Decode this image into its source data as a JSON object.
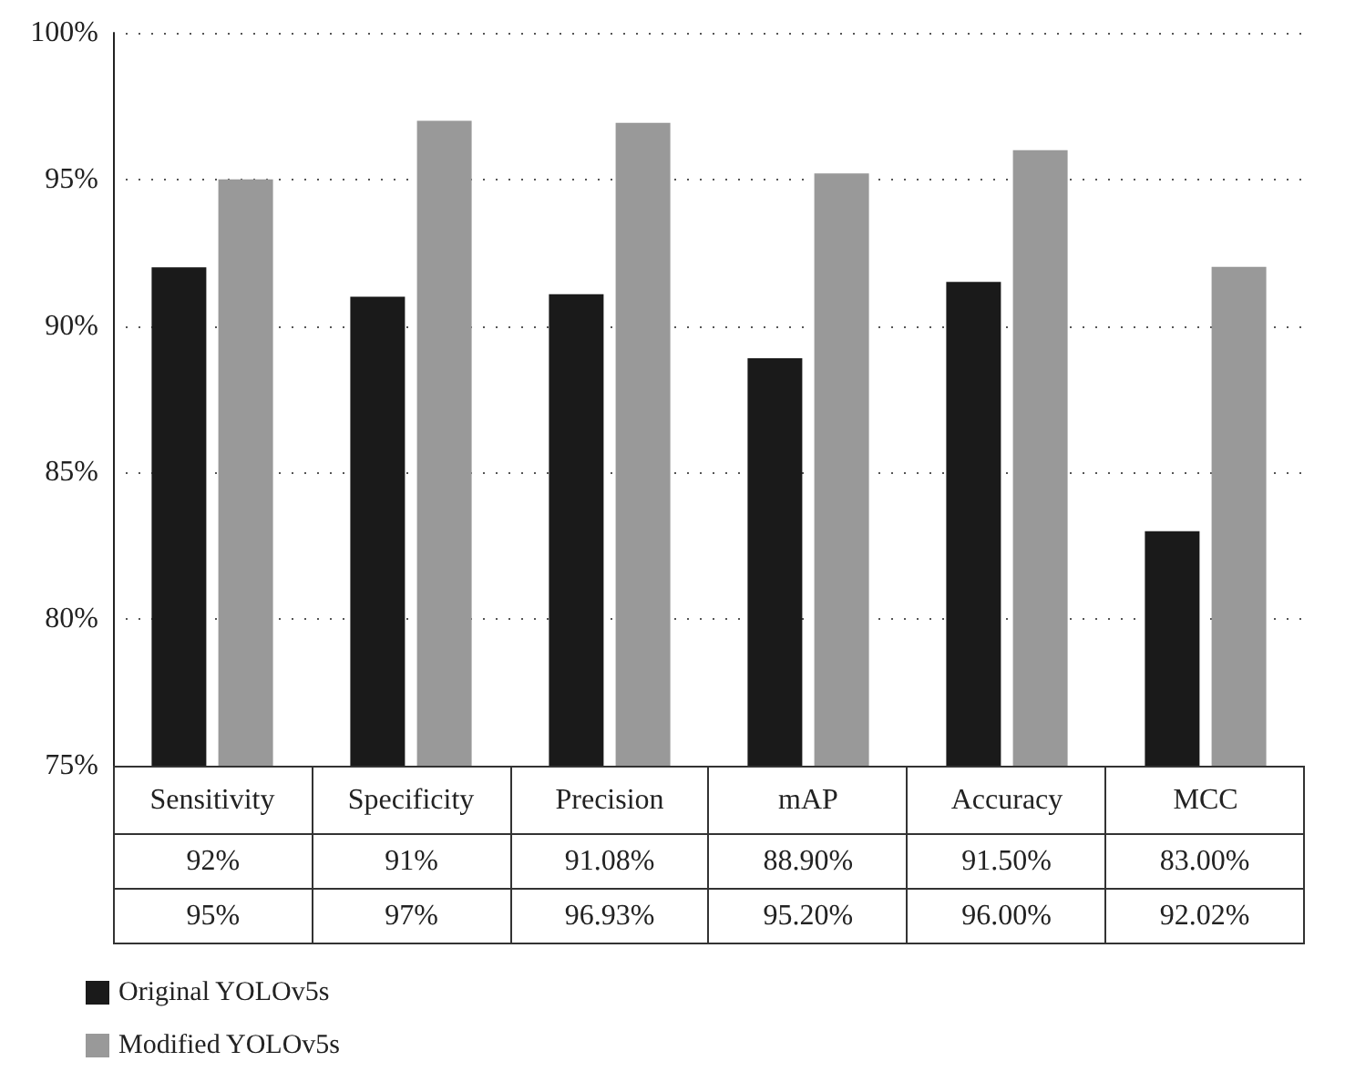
{
  "chart_data": {
    "type": "bar",
    "categories": [
      "Sensitivity",
      "Specificity",
      "Precision",
      "mAP",
      "Accuracy",
      "MCC"
    ],
    "series": [
      {
        "name": "Original YOLOv5s",
        "color": "#1a1a1a",
        "values": [
          92,
          91,
          91.08,
          88.9,
          91.5,
          83.0
        ],
        "value_labels": [
          "92%",
          "91%",
          "91.08%",
          "88.90%",
          "91.50%",
          "83.00%"
        ]
      },
      {
        "name": "Modified YOLOv5s",
        "color": "#999999",
        "values": [
          95,
          97,
          96.93,
          95.2,
          96.0,
          92.02
        ],
        "value_labels": [
          "95%",
          "97%",
          "96.93%",
          "95.20%",
          "96.00%",
          "92.02%"
        ]
      }
    ],
    "ylim": [
      75,
      100
    ],
    "yticks": [
      {
        "value": 75,
        "label": "75%"
      },
      {
        "value": 80,
        "label": "80%"
      },
      {
        "value": 85,
        "label": "85%"
      },
      {
        "value": 90,
        "label": "90%"
      },
      {
        "value": 95,
        "label": "95%"
      },
      {
        "value": 100,
        "label": "100%"
      }
    ],
    "grid": "y",
    "legend": "bottom left"
  }
}
